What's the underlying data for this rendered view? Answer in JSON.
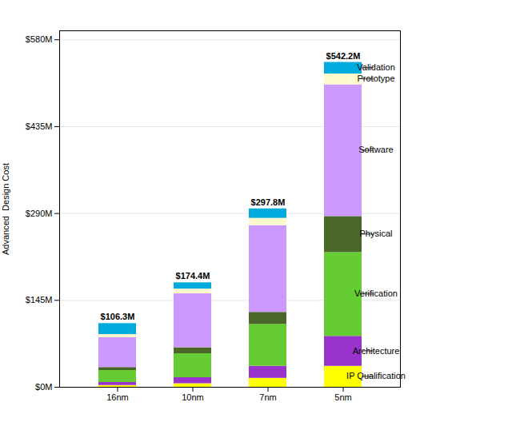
{
  "chart_data": {
    "type": "bar",
    "stacked": true,
    "categories": [
      "16nm",
      "10nm",
      "7nm",
      "5nm"
    ],
    "series": [
      {
        "name": "IP Qualification",
        "color": "#FFFF00",
        "values": [
          3.0,
          6.0,
          15.0,
          35.0
        ]
      },
      {
        "name": "Architecture",
        "color": "#9933CC",
        "values": [
          5.0,
          10.0,
          20.0,
          50.0
        ]
      },
      {
        "name": "Verification",
        "color": "#66CC33",
        "values": [
          20.0,
          40.0,
          70.0,
          140.0
        ]
      },
      {
        "name": "Physical",
        "color": "#4A6628",
        "values": [
          5.0,
          10.0,
          20.0,
          60.0
        ]
      },
      {
        "name": "Software",
        "color": "#CC99FF",
        "values": [
          50.0,
          90.0,
          145.0,
          220.0
        ]
      },
      {
        "name": "Prototype",
        "color": "#FFFACD",
        "values": [
          5.0,
          8.0,
          12.0,
          18.0
        ]
      },
      {
        "name": "Validation",
        "color": "#00AADD",
        "values": [
          18.3,
          10.4,
          15.8,
          19.2
        ]
      }
    ],
    "totals": [
      106.3,
      174.4,
      297.8,
      542.2
    ],
    "total_labels": [
      "$106.3M",
      "$174.4M",
      "$297.8M",
      "$542.2M"
    ],
    "ylabel": "Advanced  Design Cost",
    "ylim": [
      0,
      595
    ],
    "yticks": [
      {
        "value": 0,
        "label": "$0M"
      },
      {
        "value": 145,
        "label": "$145M"
      },
      {
        "value": 290,
        "label": "$290M"
      },
      {
        "value": 435,
        "label": "$435M"
      },
      {
        "value": 580,
        "label": "$580M"
      }
    ],
    "grid": true
  }
}
